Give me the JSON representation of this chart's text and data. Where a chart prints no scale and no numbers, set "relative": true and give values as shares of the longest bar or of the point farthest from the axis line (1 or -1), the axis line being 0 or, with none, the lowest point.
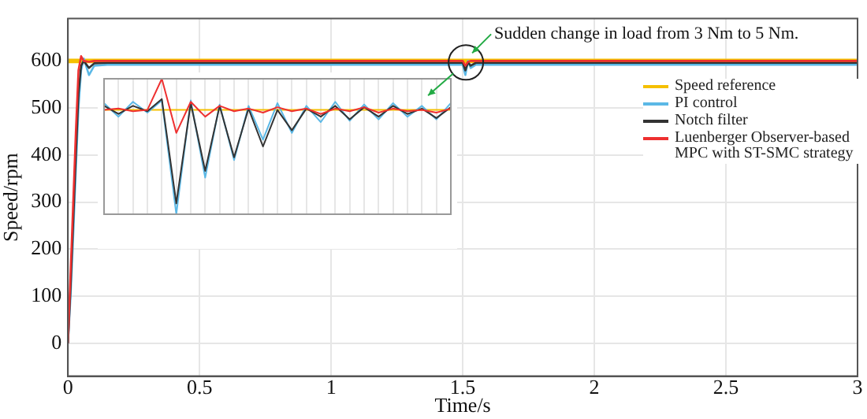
{
  "chart_data": [
    {
      "type": "line",
      "xlabel": "Time/s",
      "ylabel": "Speed/rpm",
      "x": [
        0,
        0.01,
        0.02,
        0.03,
        0.04,
        0.05,
        0.06,
        0.08,
        0.1,
        0.15,
        0.5,
        1,
        1.5,
        1.51,
        1.52,
        1.53,
        1.55,
        1.6,
        2,
        2.5,
        3
      ],
      "series": [
        {
          "name": "Speed reference",
          "color": "#f5c000",
          "values": [
            600,
            600,
            600,
            600,
            600,
            600,
            600,
            600,
            600,
            600,
            600,
            600,
            600,
            600,
            600,
            600,
            600,
            600,
            600,
            600,
            600
          ]
        },
        {
          "name": "PI control",
          "color": "#5bb8e6",
          "values": [
            0,
            100,
            230,
            370,
            500,
            580,
            605,
            570,
            590,
            592,
            592,
            592,
            592,
            570,
            600,
            585,
            592,
            592,
            592,
            592,
            592
          ]
        },
        {
          "name": "Notch filter",
          "color": "#333333",
          "values": [
            0,
            120,
            260,
            400,
            530,
            590,
            600,
            585,
            595,
            596,
            596,
            596,
            596,
            580,
            597,
            590,
            596,
            596,
            596,
            596,
            596
          ]
        },
        {
          "name": "Luenberger Observer-based MPC with ST-SMC strategy",
          "color": "#ee3030",
          "values": [
            0,
            150,
            300,
            450,
            580,
            610,
            600,
            598,
            600,
            600,
            600,
            600,
            600,
            590,
            598,
            600,
            600,
            600,
            600,
            600,
            600
          ]
        }
      ],
      "xlim": [
        0,
        3
      ],
      "xticks": [
        0,
        0.5,
        1,
        1.5,
        2,
        2.5,
        3
      ],
      "ylim": [
        -70,
        690
      ],
      "yticks": [
        0,
        100,
        200,
        300,
        400,
        500,
        600
      ],
      "grid": true,
      "legend": "right",
      "marker": "none",
      "line_style": "solid",
      "annotations": [
        {
          "text": "Sudden change in load from 3 Nm to 5 Nm.",
          "x": 1.5,
          "y": 600
        }
      ]
    },
    {
      "type": "line",
      "relative": true,
      "grid": "x",
      "marker": "none",
      "categories": [
        null,
        null,
        null,
        null,
        null,
        null,
        null,
        null,
        null,
        null,
        null,
        null,
        null,
        null,
        null,
        null,
        null,
        null,
        null,
        null,
        null,
        null,
        null,
        null,
        null
      ],
      "series": [
        {
          "color": "#f5c000",
          "values": [
            0.77,
            0.77,
            0.77,
            0.77,
            0.77,
            0.77,
            0.77,
            0.77,
            0.77,
            0.77,
            0.77,
            0.77,
            0.77,
            0.77,
            0.77,
            0.77,
            0.77,
            0.77,
            0.77,
            0.77,
            0.77,
            0.77,
            0.77,
            0.77,
            0.77
          ]
        },
        {
          "color": "#5bb8e6",
          "values": [
            0.82,
            0.72,
            0.83,
            0.75,
            0.84,
            0.0,
            0.84,
            0.27,
            0.81,
            0.4,
            0.8,
            0.55,
            0.82,
            0.6,
            0.8,
            0.68,
            0.83,
            0.69,
            0.81,
            0.7,
            0.82,
            0.72,
            0.8,
            0.7,
            0.82
          ]
        },
        {
          "color": "#333333",
          "values": [
            0.8,
            0.74,
            0.8,
            0.76,
            0.85,
            0.08,
            0.82,
            0.32,
            0.8,
            0.42,
            0.78,
            0.5,
            0.77,
            0.62,
            0.78,
            0.72,
            0.8,
            0.7,
            0.79,
            0.72,
            0.8,
            0.74,
            0.78,
            0.71,
            0.79
          ]
        },
        {
          "color": "#ee3030",
          "values": [
            0.77,
            0.78,
            0.76,
            0.77,
            1.0,
            0.6,
            0.83,
            0.72,
            0.8,
            0.76,
            0.78,
            0.75,
            0.79,
            0.76,
            0.78,
            0.74,
            0.78,
            0.76,
            0.79,
            0.75,
            0.78,
            0.76,
            0.77,
            0.75,
            0.78
          ]
        }
      ]
    }
  ]
}
